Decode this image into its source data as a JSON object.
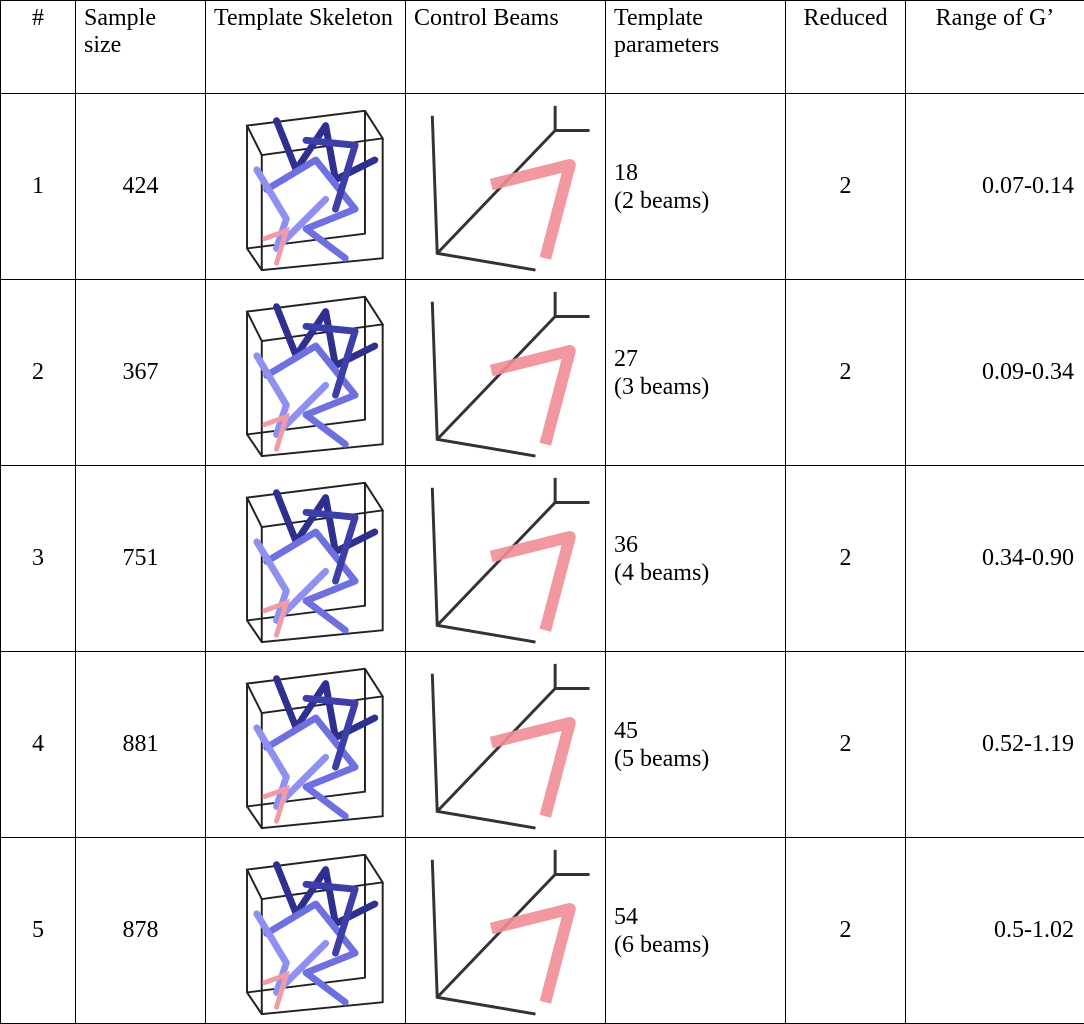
{
  "header": [
    "#",
    "Sample size",
    "Template Skeleton",
    "Control Beams",
    "Template parameters",
    "Reduced",
    "Range of G’"
  ],
  "rows": [
    {
      "id": "1",
      "sample_size": "424",
      "params": "18",
      "beams": "(2 beams)",
      "reduced": "2",
      "range": "0.07-0.14"
    },
    {
      "id": "2",
      "sample_size": "367",
      "params": "27",
      "beams": "(3 beams)",
      "reduced": "2",
      "range": "0.09-0.34"
    },
    {
      "id": "3",
      "sample_size": "751",
      "params": "36",
      "beams": "(4 beams)",
      "reduced": "2",
      "range": "0.34-0.90"
    },
    {
      "id": "4",
      "sample_size": "881",
      "params": "45",
      "beams": "(5 beams)",
      "reduced": "2",
      "range": "0.52-1.19"
    },
    {
      "id": "5",
      "sample_size": "878",
      "params": "54",
      "beams": "(6 beams)",
      "reduced": "2",
      "range": "0.5-1.02"
    }
  ]
}
